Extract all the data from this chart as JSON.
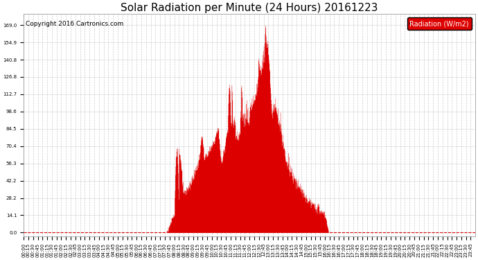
{
  "title": "Solar Radiation per Minute (24 Hours) 20161223",
  "copyright": "Copyright 2016 Cartronics.com",
  "legend_label": "Radiation (W/m2)",
  "bar_color": "#dd0000",
  "background_color": "#ffffff",
  "grid_color": "#cccccc",
  "zero_line_color": "#dd0000",
  "yticks": [
    0.0,
    14.1,
    28.2,
    42.2,
    56.3,
    70.4,
    84.5,
    98.6,
    112.7,
    126.8,
    140.8,
    154.9,
    169.0
  ],
  "ylim": [
    -3,
    178
  ],
  "title_fontsize": 11,
  "legend_fontsize": 7,
  "copyright_fontsize": 6.5,
  "tick_fontsize": 5
}
